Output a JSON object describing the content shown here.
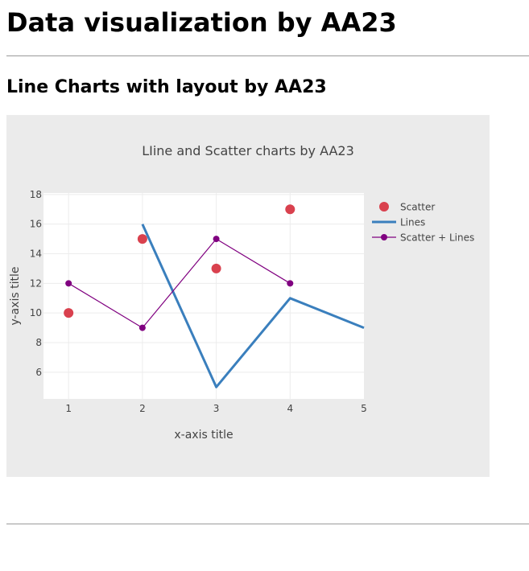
{
  "page": {
    "heading": "Data visualization by AA23",
    "subheading": "Line Charts with layout by AA23"
  },
  "chart_data": {
    "type": "line",
    "title": "LIine and Scatter charts by AA23",
    "xlabel": "x-axis title",
    "ylabel": "y-axis title",
    "xlim": [
      0.66,
      5
    ],
    "ylim": [
      4.2,
      18.1
    ],
    "x_ticks": [
      1,
      2,
      3,
      4,
      5
    ],
    "y_ticks": [
      6,
      8,
      10,
      12,
      14,
      16,
      18
    ],
    "grid": true,
    "legend_position": "top-right",
    "series": [
      {
        "name": "Scatter",
        "mode": "markers",
        "color": "#d9414e",
        "x": [
          1,
          2,
          3,
          4
        ],
        "y": [
          10,
          15,
          13,
          17
        ]
      },
      {
        "name": "Lines",
        "mode": "lines",
        "color": "#3a7fbd",
        "x": [
          2,
          3,
          4,
          5
        ],
        "y": [
          16,
          5,
          11,
          9
        ]
      },
      {
        "name": "Scatter + Lines",
        "mode": "lines+markers",
        "color": "#800080",
        "x": [
          1,
          2,
          3,
          4
        ],
        "y": [
          12,
          9,
          15,
          12
        ]
      }
    ]
  }
}
